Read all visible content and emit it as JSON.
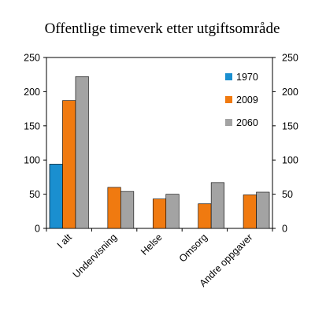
{
  "chart_data": {
    "type": "bar",
    "title": "Offentlige timeverk etter utgiftsområde",
    "categories": [
      "I alt",
      "Undervisning",
      "Helse",
      "Omsorg",
      "Andre oppgaver"
    ],
    "series": [
      {
        "name": "1970",
        "color": "#1a8fd0",
        "values": [
          94,
          null,
          null,
          null,
          null
        ]
      },
      {
        "name": "2009",
        "color": "#f07a10",
        "values": [
          187,
          60,
          43,
          36,
          49
        ]
      },
      {
        "name": "2060",
        "color": "#a3a3a3",
        "values": [
          222,
          54,
          50,
          67,
          53
        ]
      }
    ],
    "ylim": [
      0,
      250
    ],
    "yticks": [
      "0",
      "50",
      "100",
      "150",
      "200",
      "250"
    ],
    "ytick_values": [
      0,
      50,
      100,
      150,
      200,
      250
    ],
    "right_axis": true,
    "legend_position": "top-right",
    "xlabel": "",
    "ylabel": ""
  }
}
